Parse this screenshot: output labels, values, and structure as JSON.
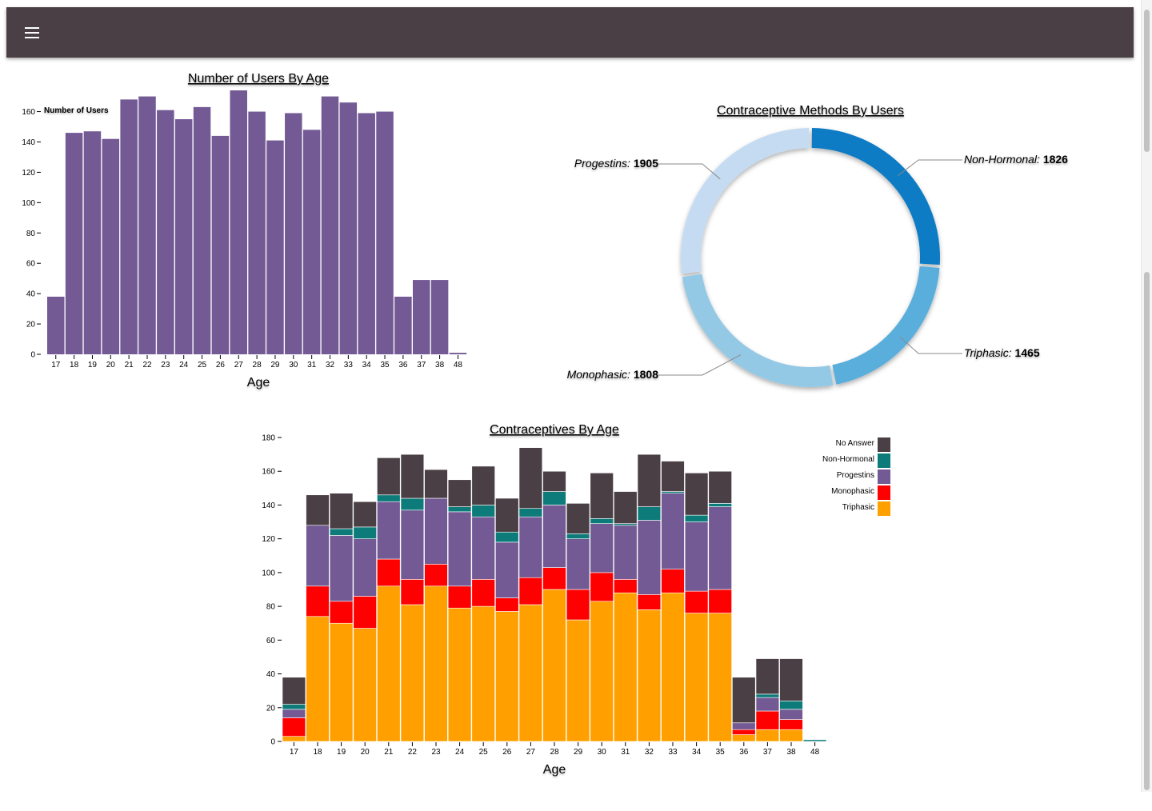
{
  "header": {
    "menu_icon": "hamburger-menu-icon"
  },
  "colors": {
    "header_bg": "#4a3f44",
    "users_bar": "#735a94",
    "no_answer": "#4a3f44",
    "non_hormonal": "#0e7b7b",
    "progestins": "#735a94",
    "monophasic": "#ff0000",
    "triphasic": "#ffa000",
    "donut_non_hormonal": "#0f7cc4",
    "donut_triphasic": "#5aaedc",
    "donut_monophasic": "#94c9e6",
    "donut_progestins": "#c4dbf2"
  },
  "chart_data": [
    {
      "type": "bar",
      "title": "Number of Users By Age",
      "xlabel": "Age",
      "ylabel": "Number of Users",
      "categories": [
        "17",
        "18",
        "19",
        "20",
        "21",
        "22",
        "23",
        "24",
        "25",
        "26",
        "27",
        "28",
        "29",
        "30",
        "31",
        "32",
        "33",
        "34",
        "35",
        "36",
        "37",
        "38",
        "48"
      ],
      "values": [
        38,
        146,
        147,
        142,
        168,
        170,
        161,
        155,
        163,
        144,
        174,
        160,
        141,
        159,
        148,
        170,
        166,
        159,
        160,
        38,
        49,
        49,
        1
      ],
      "ylim": [
        0,
        174
      ],
      "yticks": [
        0,
        20,
        40,
        60,
        80,
        100,
        120,
        140,
        160
      ]
    },
    {
      "type": "pie",
      "title": "Contraceptive Methods By Users",
      "labels": [
        "Non-Hormonal",
        "Triphasic",
        "Monophasic",
        "Progestins"
      ],
      "values": [
        1826,
        1465,
        1808,
        1905
      ]
    },
    {
      "type": "bar",
      "stacked": true,
      "title": "Contraceptives By Age",
      "xlabel": "Age",
      "categories": [
        "17",
        "18",
        "19",
        "20",
        "21",
        "22",
        "23",
        "24",
        "25",
        "26",
        "27",
        "28",
        "29",
        "30",
        "31",
        "32",
        "33",
        "34",
        "35",
        "36",
        "37",
        "38",
        "48"
      ],
      "ylim": [
        0,
        180
      ],
      "yticks": [
        0,
        20,
        40,
        60,
        80,
        100,
        120,
        140,
        160,
        180
      ],
      "legend_position": "top-right",
      "series": [
        {
          "name": "Triphasic",
          "values": [
            3,
            74,
            70,
            67,
            92,
            81,
            92,
            79,
            80,
            77,
            81,
            90,
            72,
            83,
            88,
            78,
            88,
            76,
            76,
            4,
            7,
            7,
            0
          ]
        },
        {
          "name": "Monophasic",
          "values": [
            11,
            18,
            13,
            19,
            16,
            15,
            13,
            13,
            16,
            8,
            16,
            13,
            18,
            17,
            8,
            9,
            14,
            13,
            14,
            3,
            11,
            6,
            0
          ]
        },
        {
          "name": "Progestins",
          "values": [
            5,
            36,
            39,
            34,
            34,
            41,
            39,
            44,
            37,
            33,
            36,
            37,
            30,
            29,
            32,
            44,
            45,
            41,
            49,
            4,
            8,
            6,
            0
          ]
        },
        {
          "name": "Non-Hormonal",
          "values": [
            3,
            0,
            4,
            7,
            4,
            7,
            0,
            3,
            7,
            6,
            5,
            8,
            3,
            3,
            1,
            8,
            1,
            4,
            2,
            0,
            2,
            5,
            1
          ]
        },
        {
          "name": "No Answer",
          "values": [
            16,
            18,
            21,
            15,
            22,
            26,
            17,
            16,
            23,
            20,
            36,
            12,
            18,
            27,
            19,
            31,
            18,
            25,
            19,
            27,
            21,
            25,
            0
          ]
        }
      ]
    }
  ]
}
